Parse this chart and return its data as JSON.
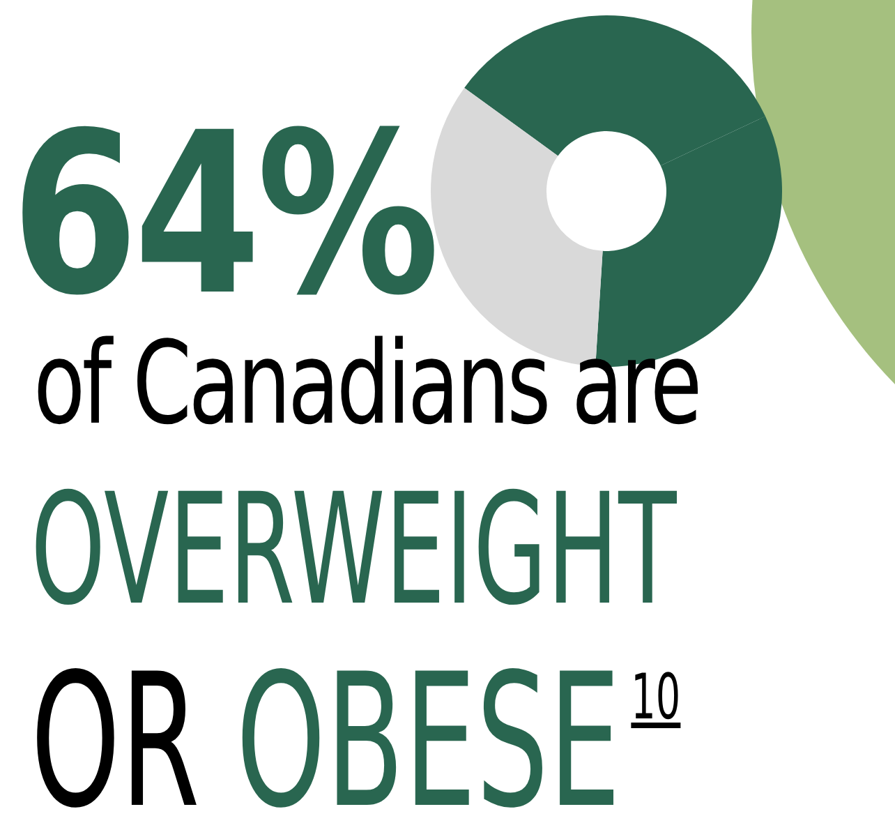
{
  "chart_data": {
    "type": "donut",
    "title": "64%",
    "categories": [
      null,
      null,
      null
    ],
    "values": [
      33,
      33,
      34
    ],
    "colors": [
      "#296650",
      "#296650",
      "#d9d9d9"
    ],
    "annotations": [
      "of Canadians are",
      "OVERWEIGHT",
      "OR OBESE$^{10}$"
    ]
  }
}
